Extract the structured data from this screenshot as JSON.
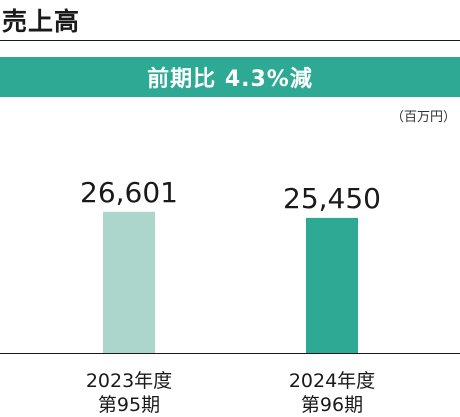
{
  "title": "売上高",
  "banner": {
    "text": "前期比 4.3%減",
    "color": "#2ea994"
  },
  "unit": "（百万円）",
  "colors": {
    "bar_previous": "#acd6cb",
    "bar_current": "#2ea994",
    "axis": "#1a1a1a"
  },
  "chart_data": {
    "type": "bar",
    "categories": [
      [
        "2023年度",
        "第95期"
      ],
      [
        "2024年度",
        "第96期"
      ]
    ],
    "values": [
      26601,
      25450
    ],
    "value_labels": [
      "26,601",
      "25,450"
    ],
    "title": "売上高",
    "xlabel": "",
    "ylabel": "",
    "unit": "百万円",
    "ylim": [
      0,
      42000
    ],
    "grid": false
  }
}
